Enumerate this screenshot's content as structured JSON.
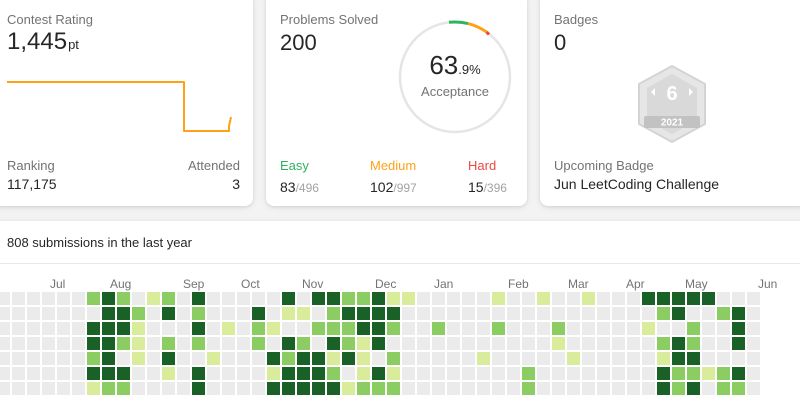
{
  "rating": {
    "title": "Contest Rating",
    "value": "1,445",
    "unit": "pt",
    "ranking_label": "Ranking",
    "ranking_value": "117,175",
    "attended_label": "Attended",
    "attended_value": "3",
    "line_color": "#ffa116"
  },
  "solved": {
    "title": "Problems Solved",
    "value": "200",
    "acceptance_int": "63",
    "acceptance_dec": ".9%",
    "acceptance_label": "Acceptance",
    "difficulties": [
      {
        "name": "Easy",
        "solved": "83",
        "total": "/496",
        "color": "#2db55d"
      },
      {
        "name": "Medium",
        "solved": "102",
        "total": "/997",
        "color": "#ffa116"
      },
      {
        "name": "Hard",
        "solved": "15",
        "total": "/396",
        "color": "#ef4743"
      }
    ]
  },
  "badges": {
    "title": "Badges",
    "value": "0",
    "upcoming_label": "Upcoming Badge",
    "upcoming_name": "Jun LeetCoding Challenge",
    "badge_number": "6",
    "badge_year": "2021",
    "badge_icon": "hexagon-badge-icon"
  },
  "submissions": {
    "header": "808 submissions in the last year",
    "months": [
      "Jul",
      "Aug",
      "Sep",
      "Oct",
      "Nov",
      "Dec",
      "Jan",
      "Feb",
      "Mar",
      "Apr",
      "May",
      "Jun"
    ],
    "colors": {
      "empty": "#ebebeb",
      "light": "#d8ec9c",
      "medium": "#8ccd63",
      "dark": "#196127"
    },
    "heatmap_rows": [
      "..................................................",
      "..........................................",
      "..........................................",
      "..........................................",
      "..........................................",
      "..........................................",
      ".........................................."
    ]
  }
}
